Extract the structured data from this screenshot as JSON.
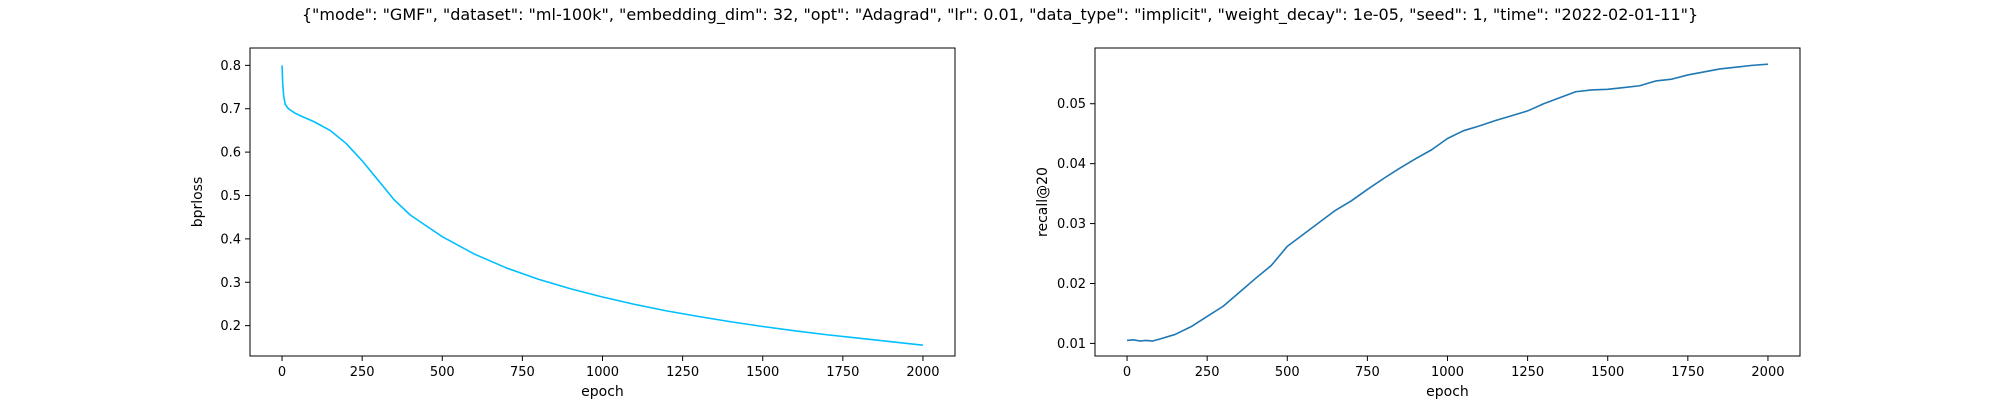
{
  "title": "{\"mode\": \"GMF\", \"dataset\": \"ml-100k\", \"embedding_dim\": 32, \"opt\": \"Adagrad\", \"lr\": 0.01, \"data_type\": \"implicit\", \"weight_decay\": 1e-05, \"seed\": 1, \"time\": \"2022-02-01-11\"}",
  "chart_data": [
    {
      "type": "line",
      "xlabel": "epoch",
      "ylabel": "bprloss",
      "xlim": [
        -100,
        2100
      ],
      "ylim": [
        0.13,
        0.84
      ],
      "xticks": [
        0,
        250,
        500,
        750,
        1000,
        1250,
        1500,
        1750,
        2000
      ],
      "yticks": [
        0.2,
        0.3,
        0.4,
        0.5,
        0.6,
        0.7,
        0.8
      ],
      "grid": false,
      "color": "#00bfff",
      "series": [
        {
          "x": [
            0,
            2,
            5,
            10,
            20,
            40,
            60,
            100,
            150,
            200,
            250,
            300,
            350,
            400,
            450,
            500,
            600,
            700,
            800,
            900,
            1000,
            1100,
            1200,
            1300,
            1400,
            1500,
            1600,
            1700,
            1800,
            1900,
            2000
          ],
          "values": [
            0.8,
            0.76,
            0.73,
            0.71,
            0.7,
            0.69,
            0.683,
            0.67,
            0.65,
            0.62,
            0.58,
            0.535,
            0.49,
            0.455,
            0.43,
            0.405,
            0.365,
            0.333,
            0.307,
            0.285,
            0.266,
            0.249,
            0.234,
            0.221,
            0.209,
            0.198,
            0.188,
            0.179,
            0.171,
            0.163,
            0.155
          ]
        }
      ]
    },
    {
      "type": "line",
      "xlabel": "epoch",
      "ylabel": "recall@20",
      "xlim": [
        -100,
        2100
      ],
      "ylim": [
        0.0079,
        0.0593
      ],
      "xticks": [
        0,
        250,
        500,
        750,
        1000,
        1250,
        1500,
        1750,
        2000
      ],
      "yticks": [
        0.01,
        0.02,
        0.03,
        0.04,
        0.05
      ],
      "ytick_labels": [
        "0.01",
        "0.02",
        "0.03",
        "0.04",
        "0.05"
      ],
      "grid": false,
      "color": "#1f77b4",
      "series": [
        {
          "x": [
            0,
            20,
            40,
            60,
            80,
            100,
            150,
            200,
            250,
            300,
            350,
            400,
            450,
            500,
            550,
            600,
            650,
            700,
            750,
            800,
            850,
            900,
            950,
            1000,
            1050,
            1100,
            1150,
            1200,
            1250,
            1300,
            1350,
            1400,
            1450,
            1500,
            1550,
            1600,
            1650,
            1700,
            1750,
            1800,
            1850,
            1900,
            1950,
            2000
          ],
          "values": [
            0.0105,
            0.0106,
            0.0104,
            0.0105,
            0.0104,
            0.0107,
            0.0115,
            0.0128,
            0.0145,
            0.0162,
            0.0185,
            0.0208,
            0.023,
            0.0262,
            0.0282,
            0.0302,
            0.0322,
            0.0338,
            0.0357,
            0.0375,
            0.0392,
            0.0408,
            0.0423,
            0.0442,
            0.0455,
            0.0463,
            0.0472,
            0.048,
            0.0488,
            0.05,
            0.051,
            0.052,
            0.0523,
            0.0524,
            0.0527,
            0.053,
            0.0538,
            0.0541,
            0.0548,
            0.0553,
            0.0558,
            0.0561,
            0.0564,
            0.0566
          ]
        }
      ]
    }
  ]
}
